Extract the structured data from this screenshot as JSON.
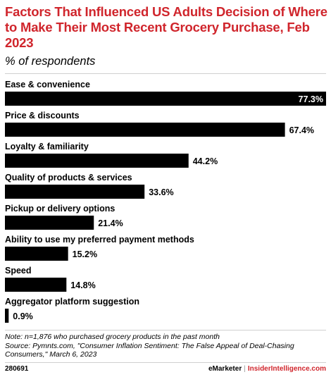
{
  "header": {
    "title": "Factors That Influenced US Adults Decision of Where to Make Their Most Recent Grocery Purchase, Feb 2023",
    "subtitle": "% of respondents"
  },
  "chart_data": {
    "type": "bar",
    "orientation": "horizontal",
    "categories": [
      "Ease & convenience",
      "Price & discounts",
      "Loyalty & familiarity",
      "Quality of products & services",
      "Pickup or delivery options",
      "Ability to use my preferred payment methods",
      "Speed",
      "Aggregator platform suggestion"
    ],
    "values": [
      77.3,
      67.4,
      44.2,
      33.6,
      21.4,
      15.2,
      14.8,
      0.9
    ],
    "value_labels": [
      "77.3%",
      "67.4%",
      "44.2%",
      "33.6%",
      "21.4%",
      "15.2%",
      "14.8%",
      "0.9%"
    ],
    "xlim": [
      0,
      77.3
    ],
    "bar_color": "#000000",
    "grid": false
  },
  "footer": {
    "note": "Note: n=1,876 who purchased grocery products in the past month",
    "source": "Source: Pymnts.com, \"Consumer Inflation Sentiment: The False Appeal of Deal-Chasing Consumers,\" March 6, 2023",
    "chart_id": "280691",
    "brand_emarketer": "eMarketer",
    "brand_separator": "|",
    "brand_insider": "InsiderIntelligence.com"
  },
  "colors": {
    "title": "#d0252c",
    "bar": "#000000",
    "inside_label": "#ffffff",
    "outside_label": "#000000"
  }
}
